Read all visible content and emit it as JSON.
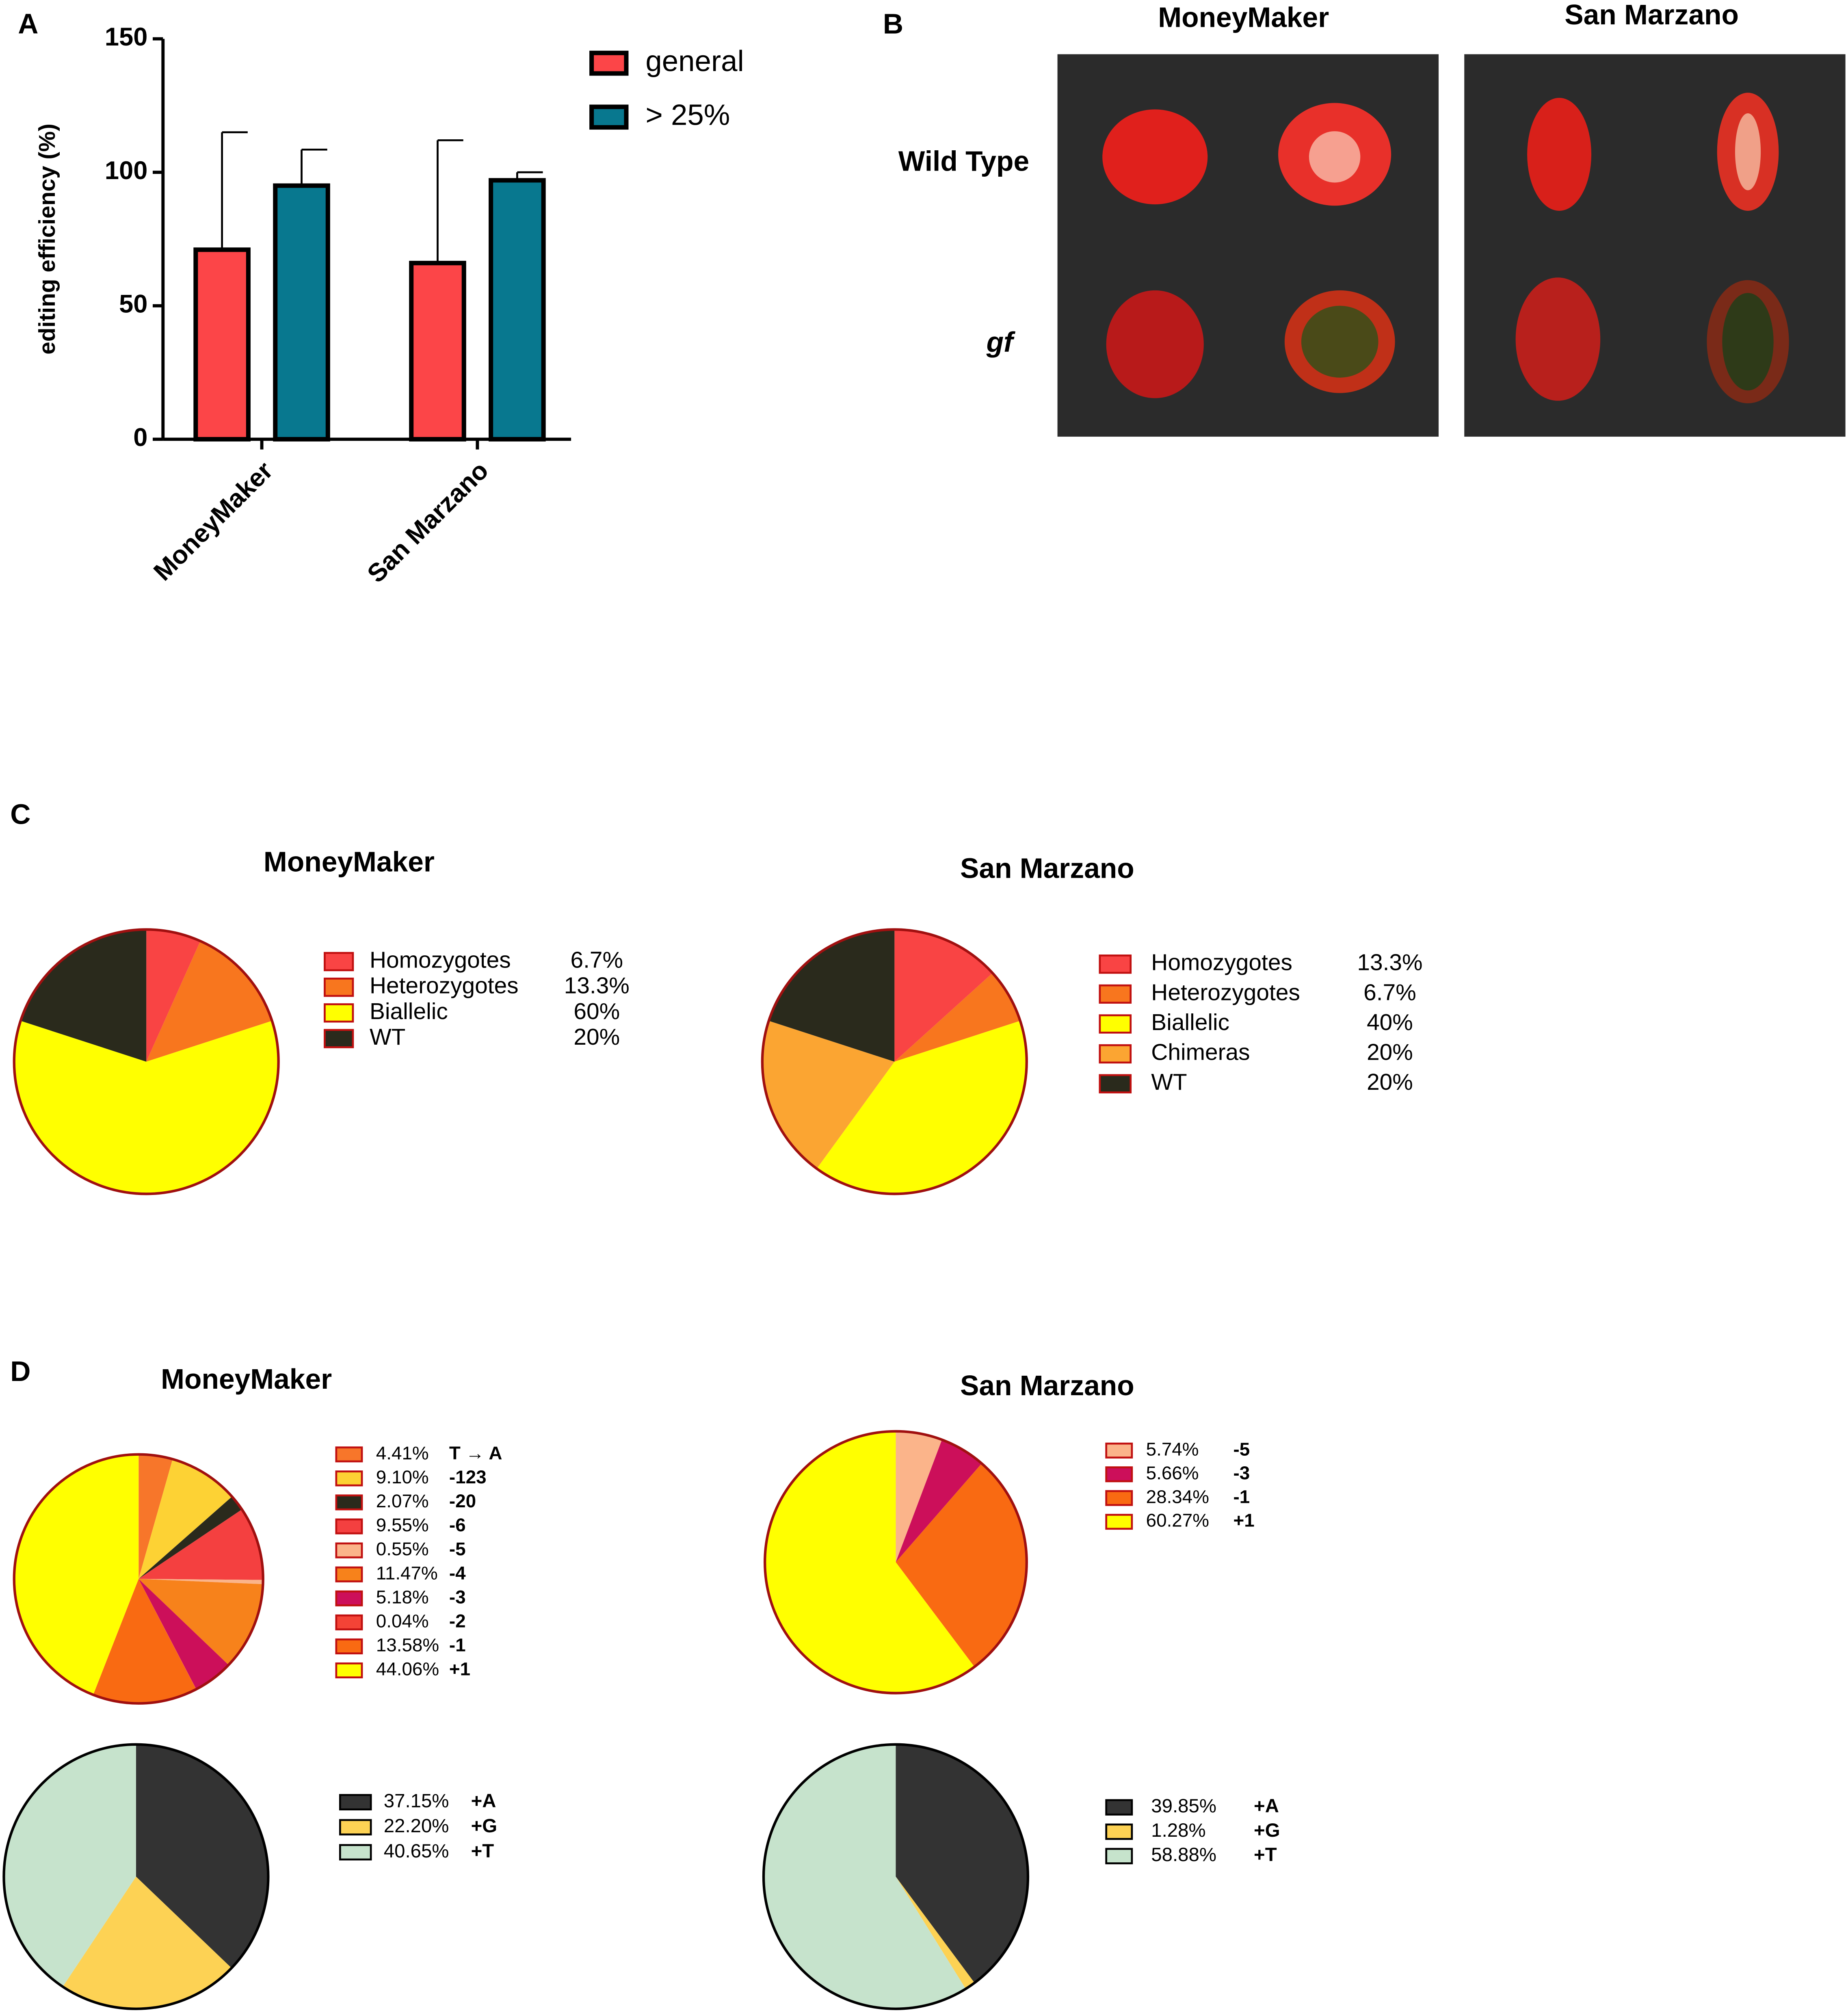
{
  "panel_labels": [
    "A",
    "B",
    "C",
    "D"
  ],
  "photo_panel": {
    "columns": [
      "MoneyMaker",
      "San Marzano"
    ],
    "rows": [
      "Wild Type",
      "gf"
    ]
  },
  "chart_data": [
    {
      "type": "bar",
      "ylabel": "editing efficiency (%)",
      "categories": [
        "MoneyMaker",
        "San Marzano"
      ],
      "series": [
        {
          "name": "general",
          "color": "#fc4548",
          "values": [
            71,
            66
          ],
          "errors": [
            44,
            46
          ]
        },
        {
          "name": "> 25%",
          "color": "#08788f",
          "values": [
            95,
            97
          ],
          "errors": [
            13.5,
            3
          ]
        }
      ],
      "ylim": [
        0,
        150
      ],
      "yticks": [
        0,
        50,
        100,
        150
      ],
      "legend": "upper right"
    },
    {
      "type": "pie",
      "title": "MoneyMaker",
      "categories": [
        "Homozygotes",
        "Heterozygotes",
        "Biallelic",
        "WT"
      ],
      "values": [
        6.7,
        13.3,
        60,
        20
      ],
      "value_labels": [
        "6.7%",
        "13.3%",
        "60%",
        "20%"
      ],
      "colors": [
        "#f94444",
        "#f8761e",
        "#ffff00",
        "#2a2a1c"
      ],
      "edgecolor": "#a01010"
    },
    {
      "type": "pie",
      "title": "San Marzano",
      "categories": [
        "Homozygotes",
        "Heterozygotes",
        "Biallelic",
        "Chimeras",
        "WT"
      ],
      "values": [
        13.3,
        6.7,
        40,
        20,
        20
      ],
      "value_labels": [
        "13.3%",
        "6.7%",
        "40%",
        "20%",
        "20%"
      ],
      "colors": [
        "#f94444",
        "#f8761e",
        "#ffff00",
        "#fba532",
        "#2a2a1c"
      ],
      "edgecolor": "#a01010"
    },
    {
      "type": "pie",
      "title": "MoneyMaker",
      "categories": [
        "T → A",
        "-123",
        "-20",
        "-6",
        "-5",
        "-4",
        "-3",
        "-2",
        "-1",
        "+1"
      ],
      "values": [
        4.41,
        9.1,
        2.07,
        9.55,
        0.55,
        11.47,
        5.18,
        0.04,
        13.58,
        44.06
      ],
      "value_labels": [
        "4.41%",
        "9.10%",
        "2.07%",
        "9.55%",
        "0.55%",
        "11.47%",
        "5.18%",
        "0.04%",
        "13.58%",
        "44.06%"
      ],
      "colors": [
        "#f7762a",
        "#fdd234",
        "#2a2a1c",
        "#f44040",
        "#fbb48a",
        "#f7821b",
        "#cc0f5a",
        "#f44336",
        "#f96a12",
        "#ffff00"
      ],
      "edgecolor": "#a01010"
    },
    {
      "type": "pie",
      "title": "San Marzano",
      "categories": [
        "-5",
        "-3",
        "-1",
        "+1"
      ],
      "values": [
        5.74,
        5.66,
        28.34,
        60.27
      ],
      "value_labels": [
        "5.74%",
        "5.66%",
        "28.34%",
        "60.27%"
      ],
      "colors": [
        "#fbb48a",
        "#cc0f5a",
        "#f96a12",
        "#ffff00"
      ],
      "edgecolor": "#a01010"
    },
    {
      "type": "pie",
      "categories": [
        "+A",
        "+G",
        "+T"
      ],
      "values": [
        37.15,
        22.2,
        40.65
      ],
      "value_labels": [
        "37.15%",
        "22.20%",
        "40.65%"
      ],
      "colors": [
        "#333333",
        "#fdd254",
        "#c6e3cc"
      ],
      "edgecolor": "#000000"
    },
    {
      "type": "pie",
      "categories": [
        "+A",
        "+G",
        "+T"
      ],
      "values": [
        39.85,
        1.28,
        58.88
      ],
      "value_labels": [
        "39.85%",
        "1.28%",
        "58.88%"
      ],
      "colors": [
        "#333333",
        "#fdd254",
        "#c6e3cc"
      ],
      "edgecolor": "#000000"
    }
  ]
}
